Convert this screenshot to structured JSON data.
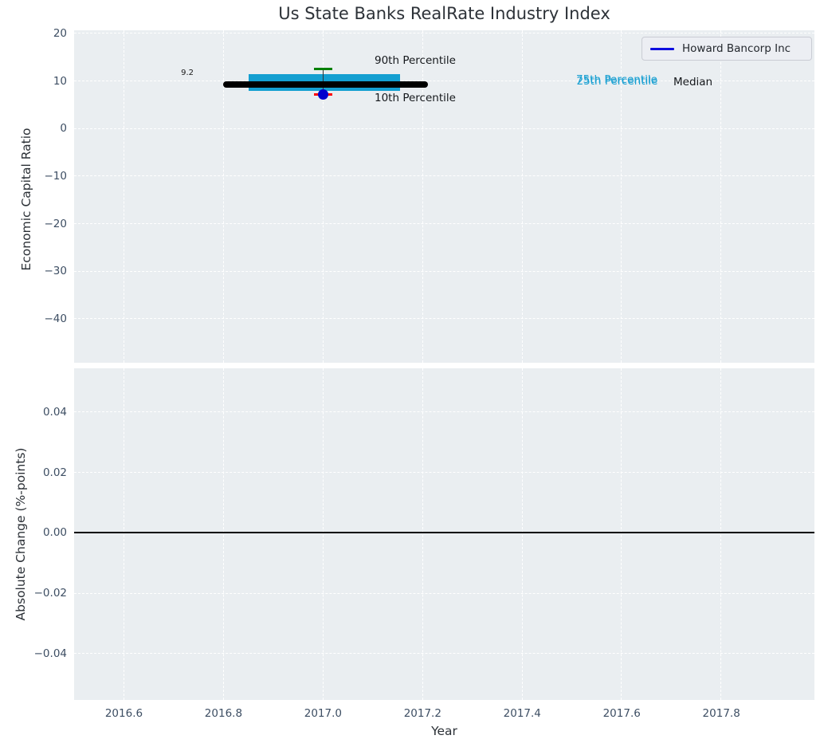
{
  "figure": {
    "title": "Us State Banks RealRate Industry Index"
  },
  "legend": {
    "label": "Howard Bancorp Inc"
  },
  "colors": {
    "plot_background": "#eaeef1",
    "grid": "#ffffff",
    "iqr_cyan": "#149fd1",
    "company_blue": "#0000cd",
    "legend_line_blue": "#0d0de0",
    "p90_green": "#008000",
    "p10_red": "#ff0000",
    "median_black": "#000000",
    "tick_text": "#3d4e63",
    "annotation_cyan": "#1aa0d2"
  },
  "chart_data": [
    {
      "type": "box",
      "subplot": "top",
      "title": "Us State Banks RealRate Industry Index",
      "ylabel": "Economic Capital Ratio",
      "grid": true,
      "legend_position": "upper right",
      "xlim": [
        2016.5,
        2017.987
      ],
      "ylim": [
        -49.22,
        20.67
      ],
      "xticks": {
        "values": [
          2016.6,
          2016.8,
          2017.0,
          2017.2,
          2017.4,
          2017.6,
          2017.8
        ],
        "labels": null
      },
      "yticks": {
        "values": [
          20,
          10,
          0,
          -10,
          -20,
          -30,
          -40
        ],
        "labels": [
          "20",
          "10",
          "0",
          "−10",
          "−20",
          "−30",
          "−40"
        ]
      },
      "box": {
        "x": 2017.0,
        "p90": 12.5,
        "p75": 11.5,
        "median": 9.2,
        "p25": 8.0,
        "p10": 7.2,
        "box_x": [
          2016.85,
          2017.155
        ],
        "median_x": [
          2016.8,
          2017.21
        ],
        "cap_halfwidth_years": 0.018
      },
      "series": [
        {
          "name": "Howard Bancorp Inc",
          "color": "#0000cd",
          "points": [
            {
              "x": 2017.0,
              "y": 7.1
            }
          ]
        }
      ],
      "annotations": [
        {
          "id": "median-value",
          "text": "9.2"
        },
        {
          "id": "p90-label",
          "text": "90th Percentile"
        },
        {
          "id": "p10-label",
          "text": "10th Percentile"
        },
        {
          "id": "p75-label",
          "text": "75th Percentile"
        },
        {
          "id": "p25-label",
          "text": "25th Percentile"
        },
        {
          "id": "median-label",
          "text": "Median"
        }
      ]
    },
    {
      "type": "line",
      "subplot": "bottom",
      "ylabel": "Absolute Change (%-points)",
      "xlabel": "Year",
      "grid": true,
      "xlim": [
        2016.5,
        2017.987
      ],
      "ylim": [
        -0.0553,
        0.0545
      ],
      "xticks": {
        "values": [
          2016.6,
          2016.8,
          2017.0,
          2017.2,
          2017.4,
          2017.6,
          2017.8
        ],
        "labels": [
          "2016.6",
          "2016.8",
          "2017.0",
          "2017.2",
          "2017.4",
          "2017.6",
          "2017.8"
        ]
      },
      "yticks": {
        "values": [
          0.04,
          0.02,
          0.0,
          -0.02,
          -0.04
        ],
        "labels": [
          "0.04",
          "0.02",
          "0.00",
          "−0.02",
          "−0.04"
        ]
      },
      "zero_line": {
        "y": 0.0,
        "color": "#000000"
      },
      "series": []
    }
  ]
}
